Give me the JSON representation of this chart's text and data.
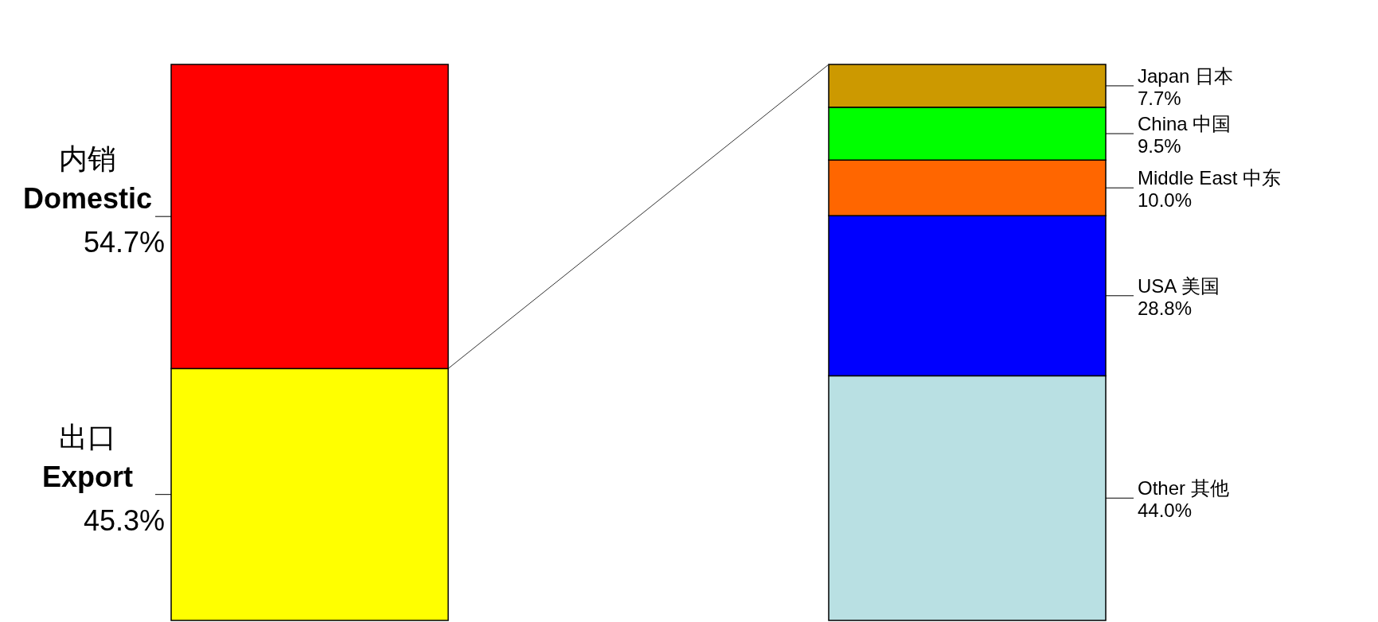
{
  "chart_data": {
    "type": "bar",
    "stacked": true,
    "categories": [
      null,
      null
    ],
    "series": [
      {
        "name": "出口\nExport",
        "color": "#ffff00",
        "values": [
          45.3,
          null
        ],
        "value_labels": [
          "45.3%",
          null
        ]
      },
      {
        "name": "内销\nDomestic",
        "color": "#ff0000",
        "values": [
          54.7,
          null
        ],
        "value_labels": [
          "54.7%",
          null
        ]
      },
      {
        "name": "Other 其他",
        "color": "#b9e0e3",
        "values": [
          null,
          44.0
        ],
        "value_labels": [
          null,
          "44.0%"
        ]
      },
      {
        "name": "USA 美国",
        "color": "#0000ff",
        "values": [
          null,
          28.8
        ],
        "value_labels": [
          null,
          "28.8%"
        ]
      },
      {
        "name": "Middle East 中东",
        "color": "#ff6600",
        "values": [
          null,
          10.0
        ],
        "value_labels": [
          null,
          "10.0%"
        ]
      },
      {
        "name": "China 中国",
        "color": "#00ff00",
        "values": [
          null,
          9.5
        ],
        "value_labels": [
          null,
          "9.5%"
        ]
      },
      {
        "name": "Japan 日本",
        "color": "#cc9900",
        "values": [
          null,
          7.7
        ],
        "value_labels": [
          null,
          "7.7%"
        ]
      }
    ]
  }
}
